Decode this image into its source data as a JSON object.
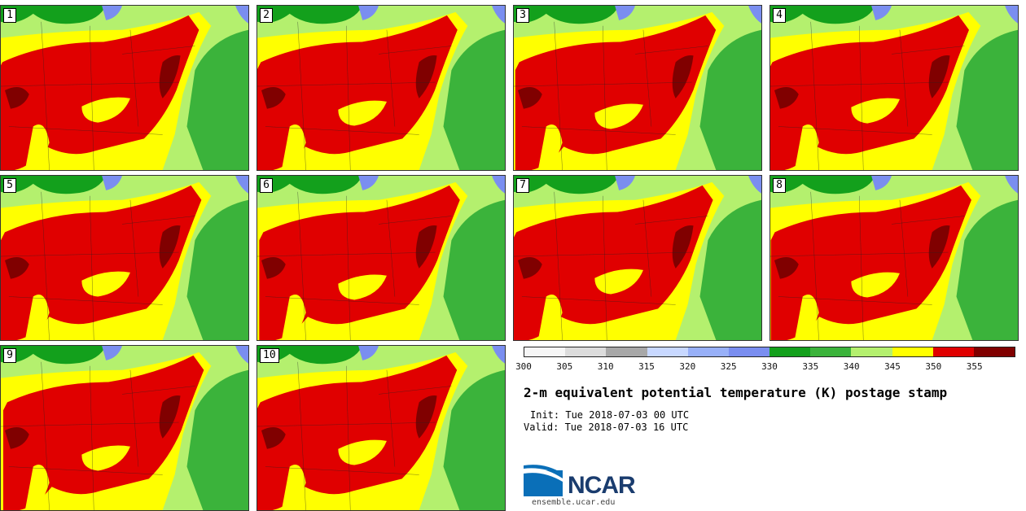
{
  "panels": [
    {
      "number": "1"
    },
    {
      "number": "2"
    },
    {
      "number": "3"
    },
    {
      "number": "4"
    },
    {
      "number": "5"
    },
    {
      "number": "6"
    },
    {
      "number": "7"
    },
    {
      "number": "8"
    },
    {
      "number": "9"
    },
    {
      "number": "10"
    }
  ],
  "legend": {
    "ticks": [
      "300",
      "305",
      "310",
      "315",
      "320",
      "325",
      "330",
      "335",
      "340",
      "345",
      "350",
      "355"
    ],
    "colors": [
      "#f6f6f6",
      "#dcdcdc",
      "#a8a8a8",
      "#c8d8ff",
      "#98b0f8",
      "#7a8ef0",
      "#13a01c",
      "#3bb33b",
      "#b4f06e",
      "#ffff00",
      "#e00000",
      "#800000"
    ]
  },
  "colors": {
    "dark_green": "#13a01c",
    "green": "#3bb33b",
    "light_green": "#b4f06e",
    "yellow": "#ffff00",
    "red": "#e00000",
    "dark_red": "#800000",
    "blue": "#7a8ef0"
  },
  "title": "2-m equivalent potential temperature (K) postage stamp",
  "init": "Init: Tue 2018-07-03 00 UTC",
  "valid": "Valid: Tue 2018-07-03 16 UTC",
  "logo": {
    "name": "NCAR",
    "url": "ensemble.ucar.edu"
  }
}
